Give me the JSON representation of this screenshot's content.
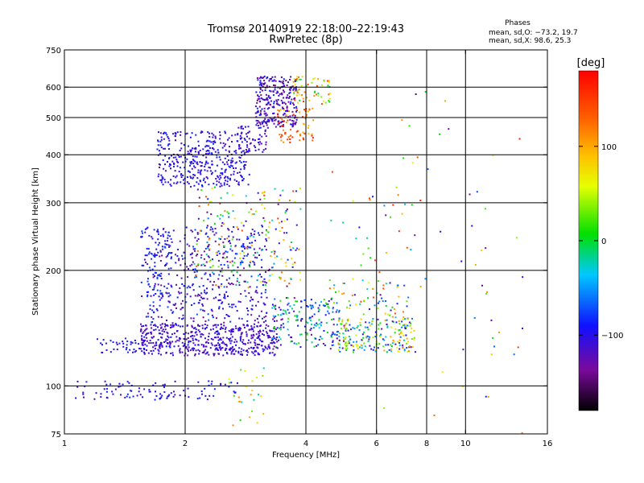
{
  "chart_data": {
    "type": "scatter",
    "title": "Tromsø 20140919 22:18:00–22:19:43",
    "subtitle": "RwPretec (8p)",
    "xlabel": "Frequency [MHz]",
    "ylabel": "Stationary phase Virtual Height [km]",
    "x_scale": "log",
    "y_scale": "log",
    "xlim": [
      1,
      16
    ],
    "ylim": [
      75,
      750
    ],
    "x_ticks": [
      "1",
      "2",
      "4",
      "6",
      "8",
      "10",
      "16"
    ],
    "y_ticks": [
      "75",
      "100",
      "200",
      "300",
      "400",
      "500",
      "600",
      "750"
    ],
    "x_gridlines": [
      2,
      4,
      6,
      8,
      10
    ],
    "y_gridlines": [
      100,
      200,
      300,
      400,
      500,
      600
    ],
    "grid": true,
    "phase_stats": {
      "title": "Phases",
      "line_o": "mean, sd,O: −73.2, 19.7",
      "line_x": "mean, sd,X:  98.6, 25.3"
    },
    "colorbar": {
      "label": "[deg]",
      "range": [
        -180,
        180
      ],
      "ticks": [
        "100",
        "0",
        "−100"
      ],
      "tick_values": [
        100,
        0,
        -100
      ],
      "colormap": "rainbow: black-purple-blue-cyan-green-yellow-orange-red"
    },
    "clusters": [
      {
        "x": [
          1.55,
          3.4
        ],
        "y": [
          120,
          145
        ],
        "phase": [
          -130,
          -90
        ],
        "n": 520
      },
      {
        "x": [
          1.2,
          1.6
        ],
        "y": [
          122,
          135
        ],
        "phase": [
          -110,
          -80
        ],
        "n": 40
      },
      {
        "x": [
          1.6,
          3.2
        ],
        "y": [
          145,
          260
        ],
        "phase": [
          -140,
          -70
        ],
        "n": 420
      },
      {
        "x": [
          1.55,
          1.85
        ],
        "y": [
          170,
          260
        ],
        "phase": [
          -110,
          -70
        ],
        "n": 90
      },
      {
        "x": [
          3.3,
          4.8
        ],
        "y": [
          125,
          170
        ],
        "phase": [
          -140,
          20
        ],
        "n": 180
      },
      {
        "x": [
          4.8,
          7.5
        ],
        "y": [
          122,
          150
        ],
        "phase": [
          -130,
          110
        ],
        "n": 220
      },
      {
        "x": [
          4.5,
          7.2
        ],
        "y": [
          150,
          190
        ],
        "phase": [
          -100,
          150
        ],
        "n": 60
      },
      {
        "x": [
          1.7,
          2.9
        ],
        "y": [
          330,
          460
        ],
        "phase": [
          -120,
          -80
        ],
        "n": 380
      },
      {
        "x": [
          2.7,
          3.2
        ],
        "y": [
          400,
          480
        ],
        "phase": [
          -130,
          -90
        ],
        "n": 60
      },
      {
        "x": [
          3.0,
          3.8
        ],
        "y": [
          470,
          640
        ],
        "phase": [
          -150,
          -80
        ],
        "n": 280
      },
      {
        "x": [
          3.4,
          4.2
        ],
        "y": [
          430,
          530
        ],
        "phase": [
          90,
          170
        ],
        "n": 70
      },
      {
        "x": [
          3.7,
          4.6
        ],
        "y": [
          540,
          640
        ],
        "phase": [
          -20,
          160
        ],
        "n": 60
      },
      {
        "x": [
          2.1,
          3.9
        ],
        "y": [
          180,
          330
        ],
        "phase": [
          -150,
          160
        ],
        "n": 240
      },
      {
        "x": [
          1.05,
          2.7
        ],
        "y": [
          92,
          103
        ],
        "phase": [
          -120,
          -80
        ],
        "n": 100
      },
      {
        "x": [
          2.5,
          3.2
        ],
        "y": [
          78,
          120
        ],
        "phase": [
          -40,
          120
        ],
        "n": 25
      },
      {
        "x": [
          4.6,
          7.6
        ],
        "y": [
          140,
          400
        ],
        "phase": [
          -150,
          160
        ],
        "n": 40
      },
      {
        "x": [
          6.0,
          14.0
        ],
        "y": [
          75,
          620
        ],
        "phase": [
          -150,
          170
        ],
        "n": 50
      }
    ]
  }
}
